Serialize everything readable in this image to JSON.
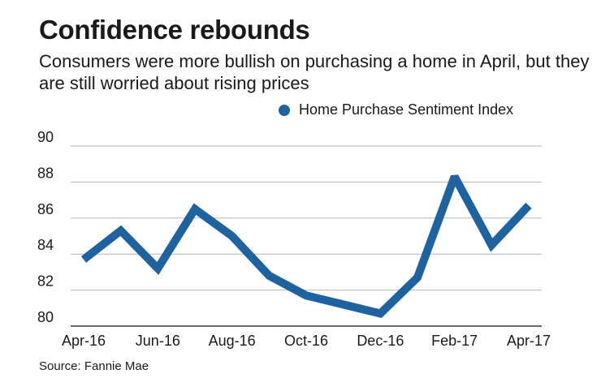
{
  "title": "Confidence rebounds",
  "subtitle": "Consumers were more bullish on purchasing a home in April, but they are still worried about rising prices",
  "source": "Source: Fannie Mae",
  "colors": {
    "line": "#1e63a0",
    "grid": "#b5b5b5",
    "axis": "#333333"
  },
  "chart_data": {
    "type": "line",
    "title": "Confidence rebounds",
    "xlabel": "",
    "ylabel": "",
    "ylim": [
      80,
      90
    ],
    "yticks": [
      80,
      82,
      84,
      86,
      88,
      90
    ],
    "xticks": [
      "Apr-16",
      "Jun-16",
      "Aug-16",
      "Oct-16",
      "Dec-16",
      "Feb-17",
      "Apr-17"
    ],
    "legend": "top-right",
    "grid": true,
    "x": [
      "Apr-16",
      "May-16",
      "Jun-16",
      "Jul-16",
      "Aug-16",
      "Sep-16",
      "Oct-16",
      "Nov-16",
      "Dec-16",
      "Jan-17",
      "Feb-17",
      "Mar-17",
      "Apr-17"
    ],
    "series": [
      {
        "name": "Home Purchase Sentiment Index",
        "values": [
          83.7,
          85.3,
          83.2,
          86.5,
          85.0,
          82.8,
          81.7,
          81.2,
          80.7,
          82.7,
          88.3,
          84.5,
          86.7
        ]
      }
    ]
  }
}
